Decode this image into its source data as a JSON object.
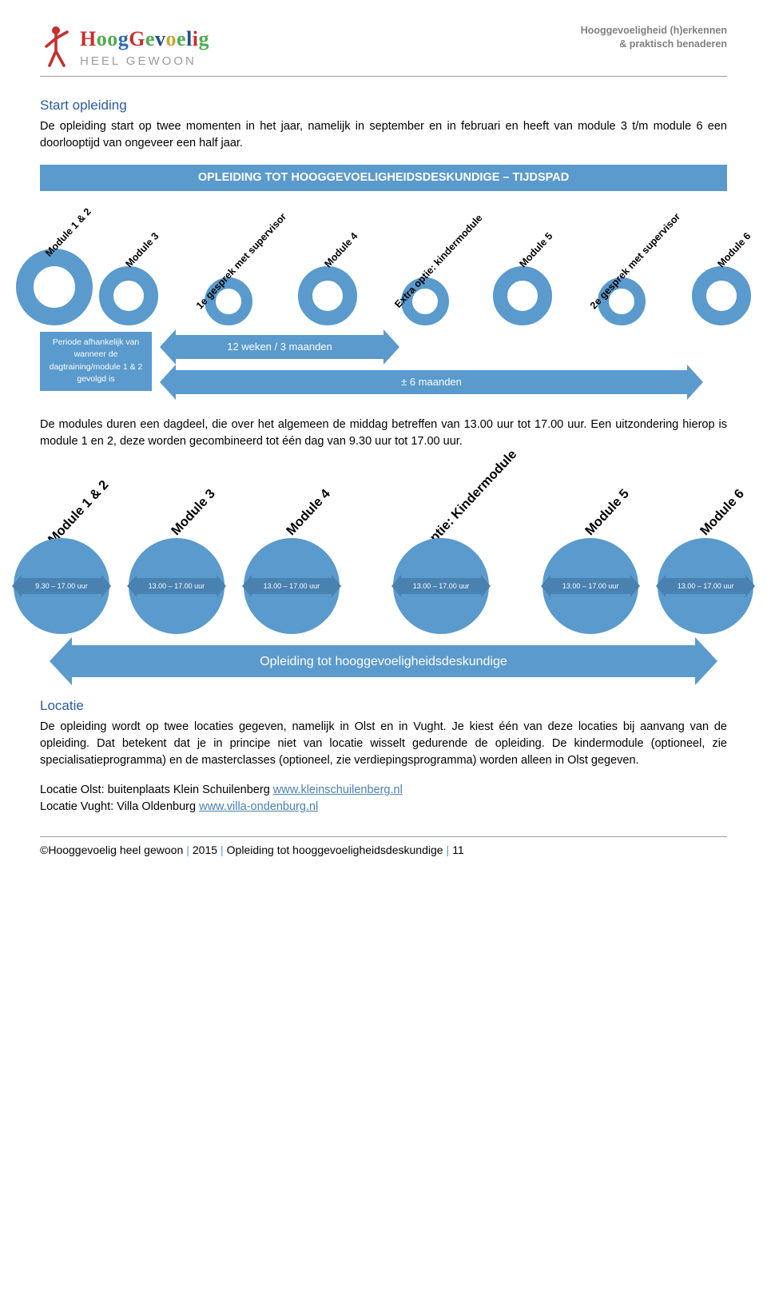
{
  "header": {
    "logo_main_parts": [
      {
        "text": "H",
        "color": "#c62f2f"
      },
      {
        "text": "oo",
        "color": "#4fae4f"
      },
      {
        "text": "g",
        "color": "#2e6ab0"
      },
      {
        "text": "G",
        "color": "#c62f2f"
      },
      {
        "text": "e",
        "color": "#4fae4f"
      },
      {
        "text": "v",
        "color": "#1f4f8b"
      },
      {
        "text": "o",
        "color": "#c9a72e"
      },
      {
        "text": "e",
        "color": "#4fae4f"
      },
      {
        "text": "l",
        "color": "#1f4f8b"
      },
      {
        "text": "i",
        "color": "#c62f2f"
      },
      {
        "text": "g",
        "color": "#4fae4f"
      }
    ],
    "logo_sub": "HEEL GEWOON",
    "right_line1": "Hooggevoeligheid (h)erkennen",
    "right_line2": "& praktisch benaderen"
  },
  "section1": {
    "title": "Start opleiding",
    "text": "De opleiding start op twee momenten in het jaar, namelijk in september en in februari en heeft van module 3 t/m module 6 een doorlooptijd van ongeveer een half jaar."
  },
  "diagram1": {
    "title": "OPLEIDING TOT HOOGGEVOELIGHEIDSDESKUNDIGE – TIJDSPAD",
    "items": [
      {
        "label": "Module 1 & 2",
        "size": 96,
        "ring": 22
      },
      {
        "label": "Module 3",
        "size": 74,
        "ring": 18
      },
      {
        "label": "1e gesprek met supervisor",
        "size": 60,
        "ring": 14
      },
      {
        "label": "Module 4",
        "size": 74,
        "ring": 18
      },
      {
        "label": "Extra optie: kindermodule",
        "size": 60,
        "ring": 14
      },
      {
        "label": "Module 5",
        "size": 74,
        "ring": 18
      },
      {
        "label": "2e gesprek met supervisor",
        "size": 60,
        "ring": 14
      },
      {
        "label": "Module 6",
        "size": 74,
        "ring": 18
      }
    ],
    "box_text": "Periode afhankelijk van wanneer de dagtraining/module 1 & 2 gevolgd is",
    "arrow1": "12 weken / 3 maanden",
    "arrow2": "± 6 maanden",
    "colors": {
      "primary": "#5a9acd"
    }
  },
  "para2": "De modules duren een dagdeel, die over het algemeen de middag betreffen van 13.00 uur tot 17.00 uur. Een uitzondering hierop is module 1 en 2, deze worden gecombineerd tot één dag van 9.30 uur tot 17.00 uur.",
  "diagram2": {
    "items": [
      {
        "label": "Module 1 & 2",
        "time": "9.30 – 17.00 uur"
      },
      {
        "label": "Module 3",
        "time": "13.00 – 17.00 uur"
      },
      {
        "label": "Module 4",
        "time": "13.00 – 17.00 uur"
      },
      {
        "label": "Extra optie: Kindermodule",
        "time": "13.00 – 17.00 uur"
      },
      {
        "label": "Module 5",
        "time": "13.00 – 17.00 uur"
      },
      {
        "label": "Module 6",
        "time": "13.00 – 17.00 uur"
      }
    ],
    "big_arrow": "Opleiding tot hooggevoeligheidsdeskundige",
    "colors": {
      "disc": "#5a9acd",
      "pill": "#4981b1"
    }
  },
  "section3": {
    "title": "Locatie",
    "text": "De opleiding wordt op twee locaties gegeven, namelijk in Olst en in Vught. Je kiest één van deze locaties bij aanvang van de opleiding. Dat betekent dat je in principe niet van locatie wisselt gedurende de opleiding. De kindermodule (optioneel, zie specialisatieprogramma) en de masterclasses (optioneel, zie verdiepingsprogramma) worden alleen in Olst gegeven.",
    "loc1_label": "Locatie Olst: buitenplaats Klein Schuilenberg ",
    "loc1_link": "www.kleinschuilenberg.nl",
    "loc2_label": "Locatie Vught: Villa Oldenburg ",
    "loc2_link": "www.villa-ondenburg.nl"
  },
  "footer": {
    "part1": "©Hooggevoelig heel gewoon",
    "part2": "2015",
    "part3": "Opleiding tot hooggevoeligheidsdeskundige",
    "part4": "11"
  }
}
